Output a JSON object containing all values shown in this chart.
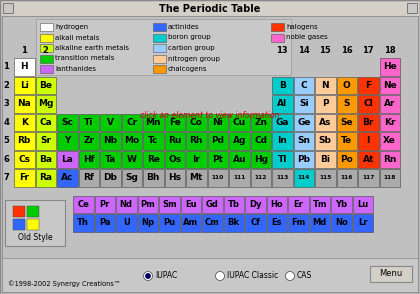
{
  "title": "The Periodic Table",
  "bg_color": "#c0c0c0",
  "colors": {
    "hydrogen": "#ffffff",
    "alkali": "#ffff00",
    "alkaline": "#ccff00",
    "transition": "#00cc00",
    "lanthanides": "#cc66ff",
    "actinides": "#3366ff",
    "boron_group": "#00cccc",
    "carbon_group": "#99ccff",
    "nitrogen_group": "#ffcc99",
    "chalcogens": "#ff9900",
    "halogens": "#ff3300",
    "noble_gases": "#ff66cc",
    "unknown": "#aaaaaa"
  },
  "elements": [
    {
      "sym": "H",
      "col": 0,
      "row": 0,
      "type": "hydrogen"
    },
    {
      "sym": "He",
      "col": 17,
      "row": 0,
      "type": "noble_gases"
    },
    {
      "sym": "Li",
      "col": 0,
      "row": 1,
      "type": "alkali"
    },
    {
      "sym": "Be",
      "col": 1,
      "row": 1,
      "type": "alkaline"
    },
    {
      "sym": "B",
      "col": 12,
      "row": 1,
      "type": "boron_group"
    },
    {
      "sym": "C",
      "col": 13,
      "row": 1,
      "type": "carbon_group"
    },
    {
      "sym": "N",
      "col": 14,
      "row": 1,
      "type": "nitrogen_group"
    },
    {
      "sym": "O",
      "col": 15,
      "row": 1,
      "type": "chalcogens"
    },
    {
      "sym": "F",
      "col": 16,
      "row": 1,
      "type": "halogens"
    },
    {
      "sym": "Ne",
      "col": 17,
      "row": 1,
      "type": "noble_gases"
    },
    {
      "sym": "Na",
      "col": 0,
      "row": 2,
      "type": "alkali"
    },
    {
      "sym": "Mg",
      "col": 1,
      "row": 2,
      "type": "alkaline"
    },
    {
      "sym": "Al",
      "col": 12,
      "row": 2,
      "type": "boron_group"
    },
    {
      "sym": "Si",
      "col": 13,
      "row": 2,
      "type": "carbon_group"
    },
    {
      "sym": "P",
      "col": 14,
      "row": 2,
      "type": "nitrogen_group"
    },
    {
      "sym": "S",
      "col": 15,
      "row": 2,
      "type": "chalcogens"
    },
    {
      "sym": "Cl",
      "col": 16,
      "row": 2,
      "type": "halogens"
    },
    {
      "sym": "Ar",
      "col": 17,
      "row": 2,
      "type": "noble_gases"
    },
    {
      "sym": "K",
      "col": 0,
      "row": 3,
      "type": "alkali"
    },
    {
      "sym": "Ca",
      "col": 1,
      "row": 3,
      "type": "alkaline"
    },
    {
      "sym": "Sc",
      "col": 2,
      "row": 3,
      "type": "transition"
    },
    {
      "sym": "Ti",
      "col": 3,
      "row": 3,
      "type": "transition"
    },
    {
      "sym": "V",
      "col": 4,
      "row": 3,
      "type": "transition"
    },
    {
      "sym": "Cr",
      "col": 5,
      "row": 3,
      "type": "transition"
    },
    {
      "sym": "Mn",
      "col": 6,
      "row": 3,
      "type": "transition"
    },
    {
      "sym": "Fe",
      "col": 7,
      "row": 3,
      "type": "transition"
    },
    {
      "sym": "Co",
      "col": 8,
      "row": 3,
      "type": "transition"
    },
    {
      "sym": "Ni",
      "col": 9,
      "row": 3,
      "type": "transition"
    },
    {
      "sym": "Cu",
      "col": 10,
      "row": 3,
      "type": "transition"
    },
    {
      "sym": "Zn",
      "col": 11,
      "row": 3,
      "type": "transition"
    },
    {
      "sym": "Ga",
      "col": 12,
      "row": 3,
      "type": "boron_group"
    },
    {
      "sym": "Ge",
      "col": 13,
      "row": 3,
      "type": "carbon_group"
    },
    {
      "sym": "As",
      "col": 14,
      "row": 3,
      "type": "nitrogen_group"
    },
    {
      "sym": "Se",
      "col": 15,
      "row": 3,
      "type": "chalcogens"
    },
    {
      "sym": "Br",
      "col": 16,
      "row": 3,
      "type": "halogens"
    },
    {
      "sym": "Kr",
      "col": 17,
      "row": 3,
      "type": "noble_gases"
    },
    {
      "sym": "Rb",
      "col": 0,
      "row": 4,
      "type": "alkali"
    },
    {
      "sym": "Sr",
      "col": 1,
      "row": 4,
      "type": "alkaline"
    },
    {
      "sym": "Y",
      "col": 2,
      "row": 4,
      "type": "transition"
    },
    {
      "sym": "Zr",
      "col": 3,
      "row": 4,
      "type": "transition"
    },
    {
      "sym": "Nb",
      "col": 4,
      "row": 4,
      "type": "transition"
    },
    {
      "sym": "Mo",
      "col": 5,
      "row": 4,
      "type": "transition"
    },
    {
      "sym": "Tc",
      "col": 6,
      "row": 4,
      "type": "transition"
    },
    {
      "sym": "Ru",
      "col": 7,
      "row": 4,
      "type": "transition"
    },
    {
      "sym": "Rh",
      "col": 8,
      "row": 4,
      "type": "transition"
    },
    {
      "sym": "Pd",
      "col": 9,
      "row": 4,
      "type": "transition"
    },
    {
      "sym": "Ag",
      "col": 10,
      "row": 4,
      "type": "transition"
    },
    {
      "sym": "Cd",
      "col": 11,
      "row": 4,
      "type": "transition"
    },
    {
      "sym": "In",
      "col": 12,
      "row": 4,
      "type": "boron_group"
    },
    {
      "sym": "Sn",
      "col": 13,
      "row": 4,
      "type": "carbon_group"
    },
    {
      "sym": "Sb",
      "col": 14,
      "row": 4,
      "type": "nitrogen_group"
    },
    {
      "sym": "Te",
      "col": 15,
      "row": 4,
      "type": "chalcogens"
    },
    {
      "sym": "I",
      "col": 16,
      "row": 4,
      "type": "halogens"
    },
    {
      "sym": "Xe",
      "col": 17,
      "row": 4,
      "type": "noble_gases"
    },
    {
      "sym": "Cs",
      "col": 0,
      "row": 5,
      "type": "alkali"
    },
    {
      "sym": "Ba",
      "col": 1,
      "row": 5,
      "type": "alkaline"
    },
    {
      "sym": "La",
      "col": 2,
      "row": 5,
      "type": "lanthanides"
    },
    {
      "sym": "Hf",
      "col": 3,
      "row": 5,
      "type": "transition"
    },
    {
      "sym": "Ta",
      "col": 4,
      "row": 5,
      "type": "transition"
    },
    {
      "sym": "W",
      "col": 5,
      "row": 5,
      "type": "transition"
    },
    {
      "sym": "Re",
      "col": 6,
      "row": 5,
      "type": "transition"
    },
    {
      "sym": "Os",
      "col": 7,
      "row": 5,
      "type": "transition"
    },
    {
      "sym": "Ir",
      "col": 8,
      "row": 5,
      "type": "transition"
    },
    {
      "sym": "Pt",
      "col": 9,
      "row": 5,
      "type": "transition"
    },
    {
      "sym": "Au",
      "col": 10,
      "row": 5,
      "type": "transition"
    },
    {
      "sym": "Hg",
      "col": 11,
      "row": 5,
      "type": "transition"
    },
    {
      "sym": "Tl",
      "col": 12,
      "row": 5,
      "type": "boron_group"
    },
    {
      "sym": "Pb",
      "col": 13,
      "row": 5,
      "type": "carbon_group"
    },
    {
      "sym": "Bi",
      "col": 14,
      "row": 5,
      "type": "nitrogen_group"
    },
    {
      "sym": "Po",
      "col": 15,
      "row": 5,
      "type": "chalcogens"
    },
    {
      "sym": "At",
      "col": 16,
      "row": 5,
      "type": "halogens"
    },
    {
      "sym": "Rn",
      "col": 17,
      "row": 5,
      "type": "noble_gases"
    },
    {
      "sym": "Fr",
      "col": 0,
      "row": 6,
      "type": "alkali"
    },
    {
      "sym": "Ra",
      "col": 1,
      "row": 6,
      "type": "alkaline"
    },
    {
      "sym": "Ac",
      "col": 2,
      "row": 6,
      "type": "actinides"
    },
    {
      "sym": "Rf",
      "col": 3,
      "row": 6,
      "type": "unknown"
    },
    {
      "sym": "Db",
      "col": 4,
      "row": 6,
      "type": "unknown"
    },
    {
      "sym": "Sg",
      "col": 5,
      "row": 6,
      "type": "unknown"
    },
    {
      "sym": "Bh",
      "col": 6,
      "row": 6,
      "type": "unknown"
    },
    {
      "sym": "Hs",
      "col": 7,
      "row": 6,
      "type": "unknown"
    },
    {
      "sym": "Mt",
      "col": 8,
      "row": 6,
      "type": "unknown"
    },
    {
      "sym": "110",
      "col": 9,
      "row": 6,
      "type": "unknown"
    },
    {
      "sym": "111",
      "col": 10,
      "row": 6,
      "type": "unknown"
    },
    {
      "sym": "112",
      "col": 11,
      "row": 6,
      "type": "unknown"
    },
    {
      "sym": "113",
      "col": 12,
      "row": 6,
      "type": "unknown"
    },
    {
      "sym": "114",
      "col": 13,
      "row": 6,
      "type": "boron_group"
    },
    {
      "sym": "115",
      "col": 14,
      "row": 6,
      "type": "unknown"
    },
    {
      "sym": "116",
      "col": 15,
      "row": 6,
      "type": "unknown"
    },
    {
      "sym": "117",
      "col": 16,
      "row": 6,
      "type": "unknown"
    },
    {
      "sym": "118",
      "col": 17,
      "row": 6,
      "type": "unknown"
    }
  ],
  "lanthanide_series": [
    "Ce",
    "Pr",
    "Nd",
    "Pm",
    "Sm",
    "Eu",
    "Gd",
    "Tb",
    "Dy",
    "Ho",
    "Er",
    "Tm",
    "Yb",
    "Lu"
  ],
  "actinide_series": [
    "Th",
    "Pa",
    "U",
    "Np",
    "Pu",
    "Am",
    "Cm",
    "Bk",
    "Cf",
    "Es",
    "Fm",
    "Md",
    "No",
    "Lr"
  ],
  "legend_col1": [
    {
      "label": "hydrogen",
      "color": "#ffffff"
    },
    {
      "label": "alkali metals",
      "color": "#ffff00"
    },
    {
      "label": "alkaline earth metals",
      "color": "#ccff00"
    },
    {
      "label": "transition metals",
      "color": "#00cc00"
    },
    {
      "label": "lanthanides",
      "color": "#cc66ff"
    }
  ],
  "legend_col2": [
    {
      "label": "actinides",
      "color": "#3366ff"
    },
    {
      "label": "boron group",
      "color": "#00cccc"
    },
    {
      "label": "carbon group",
      "color": "#99ccff"
    },
    {
      "label": "nitrogen group",
      "color": "#ffcc99"
    },
    {
      "label": "chalcogens",
      "color": "#ff9900"
    }
  ],
  "legend_col3": [
    {
      "label": "halogens",
      "color": "#ff3300"
    },
    {
      "label": "noble gases",
      "color": "#ff66cc"
    }
  ],
  "group_numbers": [
    "1",
    "2",
    "",
    "",
    "",
    "",
    "",
    "",
    "",
    "",
    "",
    "",
    "13",
    "14",
    "15",
    "16",
    "17",
    "18"
  ],
  "click_text": "click an element to view information",
  "click_color": "#cc0000",
  "copyright": "©1998-2002 Synergy Creations™",
  "bottom_radio": [
    "IUPAC",
    "IUPAC Classic",
    "CAS"
  ],
  "old_style_label": "Old Style",
  "icon_colors": [
    "#ff3300",
    "#00cc00",
    "#3366ff",
    "#ffff00"
  ]
}
